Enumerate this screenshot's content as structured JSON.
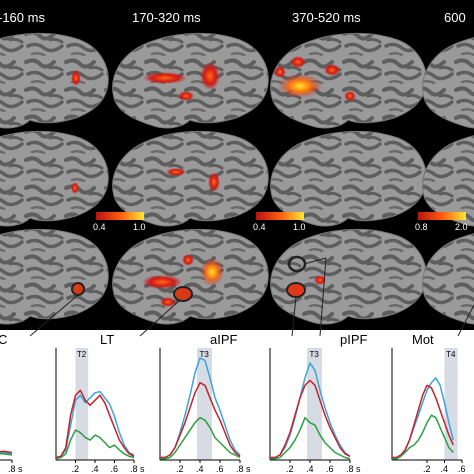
{
  "time_windows": [
    "-160 ms",
    "170-320 ms",
    "370-520 ms",
    "600"
  ],
  "colorbars": [
    {
      "min": "0.4",
      "max": "1.0"
    },
    {
      "min": "0.4",
      "max": "1.0"
    },
    {
      "min": "0.8",
      "max": "2.0"
    }
  ],
  "colors": {
    "background": "#000000",
    "brain_light": "#9a9a9a",
    "brain_dark": "#5e5e5e",
    "activation_low": "#d01818",
    "activation_high": "#ffe830",
    "roi_outline": "#222222",
    "series_blue": "#3aa6d8",
    "series_red": "#c8202a",
    "series_green": "#2e9e44",
    "window_shade": "#d6dbe4"
  },
  "roi_labels": [
    "C",
    "LT",
    "aIPF",
    "pIPF",
    "Mot"
  ],
  "chart_data": [
    {
      "type": "line",
      "roi": "C",
      "window": "",
      "x": [
        0,
        0.1,
        0.2,
        0.3,
        0.4,
        0.5,
        0.6,
        0.7,
        0.8
      ],
      "series": [
        {
          "color": "#3aa6d8",
          "values": [
            0.05,
            0.08,
            0.06,
            0.05,
            0.06,
            0.05,
            0.05,
            0.06,
            0.05
          ]
        },
        {
          "color": "#c8202a",
          "values": [
            0.06,
            0.1,
            0.07,
            0.06,
            0.07,
            0.06,
            0.06,
            0.07,
            0.06
          ]
        },
        {
          "color": "#2e9e44",
          "values": [
            0.04,
            0.06,
            0.05,
            0.04,
            0.05,
            0.04,
            0.05,
            0.05,
            0.04
          ]
        }
      ],
      "xticks": [
        ".6",
        ".8 s"
      ]
    },
    {
      "type": "line",
      "roi": "LT",
      "window": "T2",
      "x": [
        0,
        0.05,
        0.1,
        0.15,
        0.2,
        0.25,
        0.3,
        0.35,
        0.4,
        0.45,
        0.5,
        0.55,
        0.6,
        0.65,
        0.7,
        0.75,
        0.8
      ],
      "series": [
        {
          "color": "#3aa6d8",
          "values": [
            0.02,
            0.03,
            0.08,
            0.28,
            0.48,
            0.52,
            0.46,
            0.5,
            0.54,
            0.55,
            0.5,
            0.45,
            0.35,
            0.22,
            0.12,
            0.06,
            0.04
          ]
        },
        {
          "color": "#c8202a",
          "values": [
            0.02,
            0.03,
            0.1,
            0.36,
            0.52,
            0.56,
            0.48,
            0.44,
            0.48,
            0.52,
            0.46,
            0.36,
            0.26,
            0.16,
            0.1,
            0.05,
            0.03
          ]
        },
        {
          "color": "#2e9e44",
          "values": [
            0.01,
            0.02,
            0.05,
            0.16,
            0.24,
            0.22,
            0.18,
            0.16,
            0.2,
            0.18,
            0.14,
            0.1,
            0.12,
            0.08,
            0.05,
            0.03,
            0.02
          ]
        }
      ],
      "xticks": [
        ".2",
        ".4",
        ".6",
        ".8 s"
      ]
    },
    {
      "type": "line",
      "roi": "aIPF",
      "window": "T3",
      "x": [
        0,
        0.05,
        0.1,
        0.15,
        0.2,
        0.25,
        0.3,
        0.35,
        0.4,
        0.45,
        0.5,
        0.55,
        0.6,
        0.65,
        0.7,
        0.75,
        0.8
      ],
      "series": [
        {
          "color": "#3aa6d8",
          "values": [
            0.02,
            0.02,
            0.04,
            0.1,
            0.22,
            0.36,
            0.52,
            0.7,
            0.82,
            0.8,
            0.66,
            0.5,
            0.4,
            0.28,
            0.16,
            0.08,
            0.04
          ]
        },
        {
          "color": "#c8202a",
          "values": [
            0.02,
            0.02,
            0.04,
            0.1,
            0.2,
            0.3,
            0.42,
            0.54,
            0.62,
            0.6,
            0.5,
            0.4,
            0.32,
            0.22,
            0.12,
            0.06,
            0.03
          ]
        },
        {
          "color": "#2e9e44",
          "values": [
            0.01,
            0.01,
            0.02,
            0.06,
            0.12,
            0.18,
            0.24,
            0.3,
            0.34,
            0.32,
            0.26,
            0.18,
            0.14,
            0.1,
            0.06,
            0.04,
            0.02
          ]
        }
      ],
      "xticks": [
        ".2",
        ".4",
        ".6",
        ".8 s"
      ]
    },
    {
      "type": "line",
      "roi": "pIPF",
      "window": "T3",
      "x": [
        0,
        0.05,
        0.1,
        0.15,
        0.2,
        0.25,
        0.3,
        0.35,
        0.4,
        0.45,
        0.5,
        0.55,
        0.6,
        0.65,
        0.7,
        0.75,
        0.8
      ],
      "series": [
        {
          "color": "#3aa6d8",
          "values": [
            0.02,
            0.02,
            0.04,
            0.1,
            0.2,
            0.34,
            0.5,
            0.66,
            0.78,
            0.72,
            0.56,
            0.42,
            0.3,
            0.2,
            0.12,
            0.06,
            0.03
          ]
        },
        {
          "color": "#c8202a",
          "values": [
            0.02,
            0.02,
            0.04,
            0.12,
            0.22,
            0.36,
            0.5,
            0.6,
            0.64,
            0.6,
            0.48,
            0.36,
            0.26,
            0.18,
            0.1,
            0.05,
            0.03
          ]
        },
        {
          "color": "#2e9e44",
          "values": [
            0.01,
            0.01,
            0.02,
            0.06,
            0.1,
            0.16,
            0.24,
            0.34,
            0.3,
            0.28,
            0.2,
            0.14,
            0.1,
            0.06,
            0.04,
            0.02,
            0.01
          ]
        }
      ],
      "xticks": [
        ".2",
        ".4",
        ".6",
        ".8 s"
      ]
    },
    {
      "type": "line",
      "roi": "Mot",
      "window": "T4",
      "x": [
        0,
        0.05,
        0.1,
        0.15,
        0.2,
        0.25,
        0.3,
        0.35,
        0.4,
        0.45,
        0.5,
        0.55,
        0.6,
        0.65,
        0.7
      ],
      "series": [
        {
          "color": "#3aa6d8",
          "values": [
            0.02,
            0.02,
            0.04,
            0.08,
            0.16,
            0.26,
            0.36,
            0.46,
            0.56,
            0.62,
            0.66,
            0.6,
            0.46,
            0.3,
            0.16
          ]
        },
        {
          "color": "#c8202a",
          "values": [
            0.02,
            0.02,
            0.04,
            0.08,
            0.16,
            0.28,
            0.4,
            0.52,
            0.6,
            0.58,
            0.5,
            0.4,
            0.3,
            0.2,
            0.12
          ]
        },
        {
          "color": "#2e9e44",
          "values": [
            0.01,
            0.01,
            0.03,
            0.06,
            0.1,
            0.12,
            0.16,
            0.22,
            0.3,
            0.36,
            0.34,
            0.26,
            0.18,
            0.1,
            0.06
          ]
        }
      ],
      "xticks": [
        ".2",
        ".4",
        ".6"
      ]
    }
  ]
}
